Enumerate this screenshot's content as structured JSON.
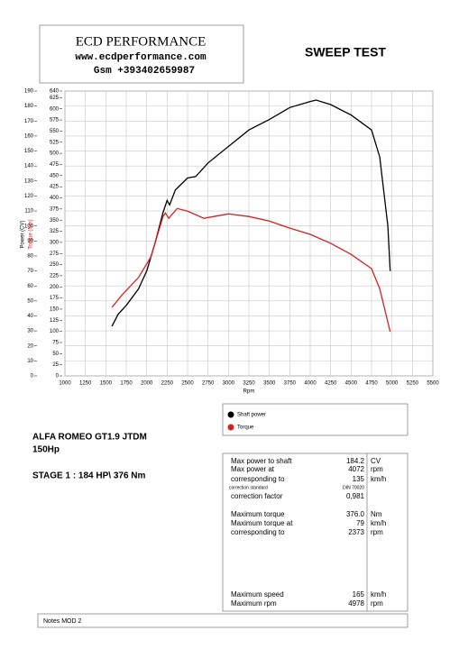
{
  "header": {
    "title": "ECD PERFORMANCE",
    "website": "www.ecdperformance.com",
    "phone": "Gsm +393402659987"
  },
  "heading": "SWEEP TEST",
  "chart_data": {
    "type": "line",
    "x_label": "Rpm",
    "y_label": "Power (CV)",
    "y2_label": "Torque (Nm)",
    "xlim": [
      1000,
      5500
    ],
    "xticks": [
      1000,
      1250,
      1500,
      1750,
      2000,
      2250,
      2500,
      2750,
      3000,
      3250,
      3500,
      3750,
      4000,
      4250,
      4500,
      4750,
      5000,
      5250,
      5500
    ],
    "ylim": [
      0,
      190
    ],
    "yticks": [
      0,
      10,
      20,
      30,
      40,
      50,
      60,
      70,
      80,
      90,
      100,
      110,
      120,
      130,
      140,
      150,
      160,
      170,
      180,
      190
    ],
    "y2lim": [
      0,
      640
    ],
    "y2ticks": [
      0,
      25,
      50,
      75,
      100,
      125,
      150,
      175,
      200,
      225,
      250,
      275,
      300,
      325,
      350,
      375,
      400,
      425,
      450,
      475,
      500,
      525,
      550,
      575,
      600,
      625,
      640
    ],
    "grid": true,
    "series": [
      {
        "name": "Shaft power",
        "color": "#000000",
        "axis": "y",
        "x": [
          1575,
          1650,
          1750,
          1900,
          2000,
          2100,
          2200,
          2250,
          2280,
          2350,
          2500,
          2600,
          2750,
          3000,
          3250,
          3500,
          3750,
          4000,
          4072,
          4250,
          4500,
          4750,
          4850,
          4950,
          4978
        ],
        "values": [
          33,
          41,
          47,
          58,
          70,
          88,
          109,
          117,
          114,
          124,
          132,
          133,
          142,
          153,
          164,
          171,
          179,
          183,
          184,
          181,
          174,
          164,
          146,
          100,
          70
        ]
      },
      {
        "name": "Torque",
        "color": "#d42020",
        "axis": "y2",
        "x": [
          1575,
          1700,
          1900,
          2050,
          2200,
          2230,
          2270,
          2373,
          2500,
          2700,
          3000,
          3250,
          3500,
          3750,
          4000,
          4250,
          4500,
          4750,
          4850,
          4978
        ],
        "values": [
          154,
          182,
          221,
          267,
          358,
          366,
          354,
          376,
          370,
          354,
          364,
          358,
          348,
          332,
          318,
          298,
          273,
          241,
          196,
          99
        ]
      }
    ]
  },
  "vehicle": {
    "model": "ALFA ROMEO GT1.9 JTDM",
    "power": "150Hp",
    "stage": "STAGE 1 : 184 HP\\ 376 Nm"
  },
  "table": {
    "rows": [
      [
        "Max power to shaft",
        "184.2",
        "CV"
      ],
      [
        "Max power at",
        "4072",
        "rpm"
      ],
      [
        "corresponding to",
        "135",
        "km/h"
      ],
      [
        "correction standard",
        "DIN 70020"
      ],
      [
        "correction factor",
        "0,981"
      ],
      [
        "Maximum torque",
        "376.0",
        "Nm"
      ],
      [
        "Maximum torque at",
        "79",
        "km/h"
      ],
      [
        "corresponding to",
        "2373",
        "rpm"
      ],
      [
        "Maximum speed",
        "165",
        "km/h"
      ],
      [
        "Maximum rpm",
        "4978",
        "rpm"
      ]
    ]
  },
  "notes": "Notes  MOD 2"
}
